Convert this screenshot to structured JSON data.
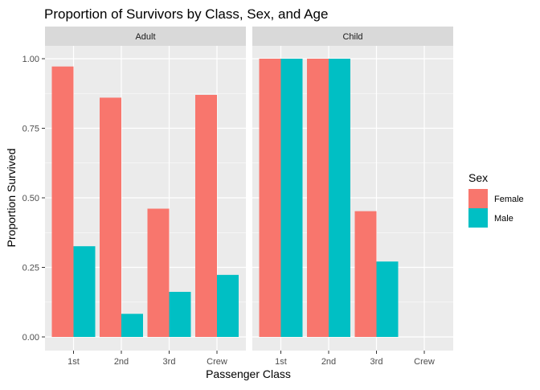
{
  "chart_data": {
    "type": "bar",
    "title": "Proportion of Survivors by Class, Sex, and Age",
    "xlabel": "Passenger Class",
    "ylabel": "Proportion Survived",
    "ylim": [
      0,
      1.05
    ],
    "yticks": [
      "0.00",
      "0.25",
      "0.50",
      "0.75",
      "1.00"
    ],
    "ytick_values": [
      0,
      0.25,
      0.5,
      0.75,
      1.0
    ],
    "categories": [
      "1st",
      "2nd",
      "3rd",
      "Crew"
    ],
    "grid": true,
    "legend": {
      "title": "Sex",
      "placement": "right",
      "entries": [
        {
          "name": "Female",
          "color": "#F8766D"
        },
        {
          "name": "Male",
          "color": "#00BFC4"
        }
      ]
    },
    "facets": [
      {
        "label": "Adult",
        "series": [
          {
            "name": "Female",
            "color": "#F8766D",
            "values": [
              0.972,
              0.86,
              0.461,
              0.87
            ]
          },
          {
            "name": "Male",
            "color": "#00BFC4",
            "values": [
              0.326,
              0.083,
              0.162,
              0.223
            ]
          }
        ]
      },
      {
        "label": "Child",
        "series": [
          {
            "name": "Female",
            "color": "#F8766D",
            "values": [
              1.0,
              1.0,
              0.452,
              null
            ]
          },
          {
            "name": "Male",
            "color": "#00BFC4",
            "values": [
              1.0,
              1.0,
              0.271,
              null
            ]
          }
        ]
      }
    ]
  }
}
